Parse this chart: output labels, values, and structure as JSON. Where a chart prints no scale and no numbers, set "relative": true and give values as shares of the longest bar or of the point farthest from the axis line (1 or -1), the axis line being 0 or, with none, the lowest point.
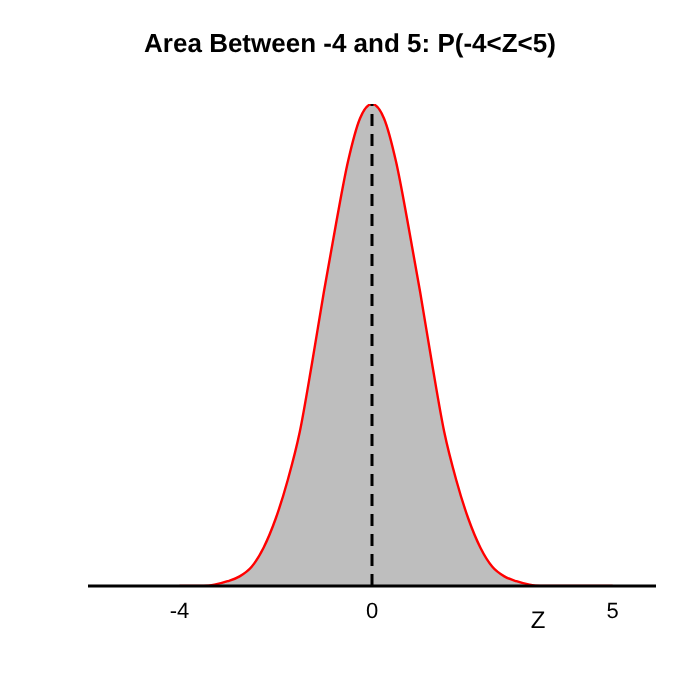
{
  "chart_data": {
    "type": "area",
    "title": "Area Between -4 and 5: P(-4<Z<5)",
    "xlabel": "Z",
    "relative": true,
    "x": [
      -4,
      -3.5,
      -3,
      -2.75,
      -2.5,
      -2.25,
      -2,
      -1.75,
      -1.5,
      -1.25,
      -1,
      -0.75,
      -0.5,
      -0.25,
      0,
      0.25,
      0.5,
      0.75,
      1,
      1.25,
      1.5,
      1.75,
      2,
      2.25,
      2.5,
      2.75,
      3,
      3.5,
      4,
      4.5,
      5
    ],
    "series": [
      {
        "color": "#bebebe",
        "values": [
          0,
          0,
          0.01,
          0.02,
          0.04,
          0.08,
          0.14,
          0.22,
          0.32,
          0.46,
          0.61,
          0.75,
          0.88,
          0.97,
          1,
          0.97,
          0.88,
          0.75,
          0.61,
          0.46,
          0.32,
          0.22,
          0.14,
          0.08,
          0.04,
          0.02,
          0.01,
          0,
          0,
          0,
          0
        ]
      }
    ],
    "xlim": [
      -5.9,
      5.9
    ],
    "xticks": [
      -4,
      0,
      5
    ],
    "ref_lines": [
      {
        "axis": "x",
        "value": 0,
        "color": "#000000",
        "line_style": "dashed"
      }
    ],
    "grid": false,
    "legend": false
  }
}
